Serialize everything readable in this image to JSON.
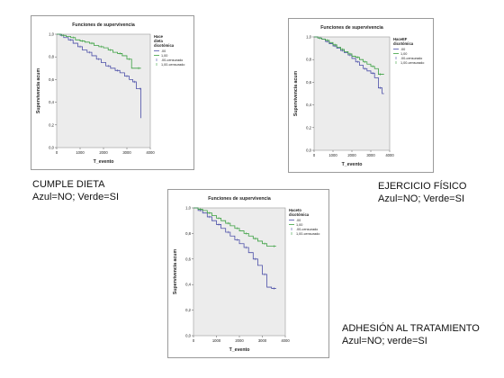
{
  "chart_data": [
    {
      "type": "line",
      "title": "Funciones de supervivencia",
      "xlabel": "T_evento",
      "ylabel": "Supervivencia acum",
      "xlim": [
        0,
        4000
      ],
      "ylim": [
        0.0,
        1.0
      ],
      "xticks": [
        "0",
        "1000",
        "2000",
        "3000",
        "4000"
      ],
      "yticks": [
        "0,0",
        "0,2",
        "0,4",
        "0,6",
        "0,8",
        "1,0"
      ],
      "legend_title": "Hace dieta dicotómica",
      "legend_position": "right",
      "legend": [
        ".00",
        "1,00",
        ".00-censurado",
        "1,00-censurado"
      ],
      "series": [
        {
          "name": ".00",
          "color": "#4b4fa8",
          "x": [
            0,
            150,
            300,
            500,
            700,
            900,
            1100,
            1300,
            1500,
            1700,
            1900,
            2100,
            2300,
            2500,
            2700,
            2900,
            3100,
            3250,
            3400,
            3550,
            3600
          ],
          "y": [
            1.0,
            0.99,
            0.97,
            0.95,
            0.92,
            0.89,
            0.86,
            0.84,
            0.81,
            0.78,
            0.75,
            0.72,
            0.7,
            0.68,
            0.66,
            0.63,
            0.6,
            0.58,
            0.52,
            0.52,
            0.26
          ]
        },
        {
          "name": "1,00",
          "color": "#3aa040",
          "x": [
            0,
            200,
            400,
            600,
            800,
            1000,
            1200,
            1400,
            1600,
            1800,
            2000,
            2200,
            2400,
            2600,
            2800,
            3000,
            3200,
            3400,
            3600
          ],
          "y": [
            1.0,
            0.99,
            0.98,
            0.97,
            0.95,
            0.94,
            0.93,
            0.92,
            0.9,
            0.89,
            0.88,
            0.86,
            0.84,
            0.83,
            0.81,
            0.78,
            0.7,
            0.7,
            0.7
          ]
        }
      ]
    },
    {
      "type": "line",
      "title": "Funciones de supervivencia",
      "xlabel": "T_evento",
      "ylabel": "Supervivencia acum",
      "xlim": [
        0,
        4000
      ],
      "ylim": [
        0.0,
        1.0
      ],
      "xticks": [
        "0",
        "1000",
        "2000",
        "3000",
        "4000"
      ],
      "yticks": [
        "0,0",
        "0,2",
        "0,4",
        "0,6",
        "0,8",
        "1,0"
      ],
      "legend_title": "HaceEF dicotómica",
      "legend_position": "right",
      "legend": [
        ".00",
        "1,00",
        ".00-censurado",
        "1,00-censurado"
      ],
      "series": [
        {
          "name": ".00",
          "color": "#4b4fa8",
          "x": [
            0,
            200,
            400,
            600,
            800,
            1000,
            1200,
            1400,
            1600,
            1800,
            2000,
            2200,
            2400,
            2600,
            2800,
            3000,
            3200,
            3400,
            3600,
            3700
          ],
          "y": [
            1.0,
            0.99,
            0.98,
            0.96,
            0.94,
            0.92,
            0.9,
            0.88,
            0.86,
            0.84,
            0.81,
            0.78,
            0.75,
            0.72,
            0.7,
            0.68,
            0.64,
            0.55,
            0.5,
            0.5
          ]
        },
        {
          "name": "1,00",
          "color": "#3aa040",
          "x": [
            0,
            200,
            400,
            600,
            800,
            1000,
            1200,
            1400,
            1600,
            1800,
            2000,
            2200,
            2400,
            2600,
            2800,
            3000,
            3200,
            3400,
            3600,
            3700
          ],
          "y": [
            1.0,
            0.99,
            0.98,
            0.97,
            0.95,
            0.93,
            0.91,
            0.89,
            0.87,
            0.85,
            0.83,
            0.82,
            0.8,
            0.78,
            0.76,
            0.74,
            0.72,
            0.67,
            0.67,
            0.67
          ]
        }
      ]
    },
    {
      "type": "line",
      "title": "Funciones de supervivencia",
      "xlabel": "T_evento",
      "ylabel": "Supervivencia acum",
      "xlim": [
        0,
        4000
      ],
      "ylim": [
        0.0,
        1.0
      ],
      "xticks": [
        "0",
        "1000",
        "2000",
        "3000",
        "4000"
      ],
      "yticks": [
        "0,0",
        "0,2",
        "0,4",
        "0,6",
        "0,8",
        "1,0"
      ],
      "legend_title": "Haceto dicotómica",
      "legend_position": "right",
      "legend": [
        ".00",
        "1,00",
        ".00-censurado",
        "1,00-censurado"
      ],
      "series": [
        {
          "name": ".00",
          "color": "#4b4fa8",
          "x": [
            0,
            200,
            400,
            600,
            800,
            1000,
            1200,
            1400,
            1600,
            1800,
            2000,
            2200,
            2400,
            2600,
            2800,
            3000,
            3200,
            3400,
            3600
          ],
          "y": [
            1.0,
            0.98,
            0.96,
            0.93,
            0.9,
            0.87,
            0.84,
            0.81,
            0.78,
            0.75,
            0.72,
            0.69,
            0.65,
            0.6,
            0.55,
            0.48,
            0.38,
            0.37,
            0.37
          ]
        },
        {
          "name": "1,00",
          "color": "#3aa040",
          "x": [
            0,
            200,
            400,
            600,
            800,
            1000,
            1200,
            1400,
            1600,
            1800,
            2000,
            2200,
            2400,
            2600,
            2800,
            3000,
            3200,
            3400,
            3600
          ],
          "y": [
            1.0,
            0.99,
            0.98,
            0.96,
            0.94,
            0.92,
            0.9,
            0.88,
            0.86,
            0.84,
            0.82,
            0.8,
            0.78,
            0.76,
            0.74,
            0.72,
            0.7,
            0.7,
            0.7
          ]
        }
      ]
    }
  ],
  "captions": [
    {
      "line1": "CUMPLE DIETA",
      "line2": "Azul=NO; Verde=SI"
    },
    {
      "line1": "EJERCICIO FÍSICO",
      "line2": "Azul=NO; Verde=SI"
    },
    {
      "line1": "ADHESIÓN AL TRATAMIENTO",
      "line2": "Azul=NO; verde=SI"
    }
  ]
}
